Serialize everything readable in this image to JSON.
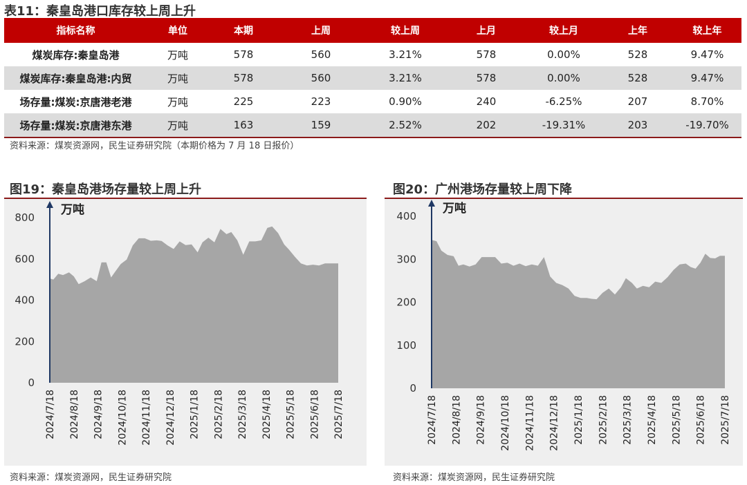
{
  "table": {
    "title": "表11：秦皇岛港口库存较上周上升",
    "headers": [
      "指标名称",
      "单位",
      "本期",
      "上周",
      "较上周",
      "上月",
      "较上月",
      "上年",
      "较上年"
    ],
    "rows": [
      [
        "煤炭库存:秦皇岛港",
        "万吨",
        "578",
        "560",
        "3.21%",
        "578",
        "0.00%",
        "528",
        "9.47%"
      ],
      [
        "煤炭库存:秦皇岛港:内贸",
        "万吨",
        "578",
        "560",
        "3.21%",
        "578",
        "0.00%",
        "528",
        "9.47%"
      ],
      [
        "场存量:煤炭:京唐港老港",
        "万吨",
        "225",
        "223",
        "0.90%",
        "240",
        "-6.25%",
        "207",
        "8.70%"
      ],
      [
        "场存量:煤炭:京唐港东港",
        "万吨",
        "163",
        "159",
        "2.52%",
        "202",
        "-19.31%",
        "203",
        "-19.70%"
      ]
    ],
    "source": "资料来源：煤炭资源网，民生证券研究院（本期价格为 7 月 18 日报价）"
  },
  "chart_data": [
    {
      "type": "area",
      "title": "图19：秦皇岛港场存量较上周上升",
      "unit_label": "万吨",
      "ylim": [
        0,
        800
      ],
      "yticks": [
        0,
        200,
        400,
        600,
        800
      ],
      "x_ticks": [
        "2024/7/18",
        "2024/8/18",
        "2024/9/18",
        "2024/10/18",
        "2024/11/18",
        "2024/12/18",
        "2025/1/18",
        "2025/2/18",
        "2025/3/18",
        "2025/4/18",
        "2025/5/18",
        "2025/6/18",
        "2025/7/18"
      ],
      "x_range": [
        0,
        12
      ],
      "x": [
        0,
        0.15,
        0.35,
        0.55,
        0.8,
        1.0,
        1.2,
        1.45,
        1.7,
        1.95,
        2.15,
        2.35,
        2.55,
        2.7,
        2.95,
        3.2,
        3.45,
        3.7,
        3.95,
        4.2,
        4.45,
        4.65,
        4.9,
        5.15,
        5.4,
        5.65,
        5.9,
        6.15,
        6.35,
        6.6,
        6.85,
        7.1,
        7.35,
        7.55,
        7.8,
        8.05,
        8.3,
        8.55,
        8.8,
        9.05,
        9.25,
        9.5,
        9.75,
        9.95,
        10.2,
        10.45,
        10.7,
        10.95,
        11.2,
        11.45,
        11.7,
        11.95,
        12
      ],
      "values": [
        505,
        500,
        528,
        522,
        535,
        515,
        478,
        492,
        510,
        492,
        583,
        583,
        510,
        535,
        575,
        597,
        665,
        700,
        700,
        688,
        690,
        687,
        665,
        648,
        685,
        667,
        670,
        632,
        680,
        703,
        680,
        745,
        720,
        730,
        690,
        620,
        685,
        685,
        690,
        750,
        757,
        725,
        670,
        645,
        610,
        578,
        568,
        572,
        568,
        578,
        578,
        578,
        578
      ]
    },
    {
      "type": "area",
      "title": "图20：广州港场存量较上周下降",
      "unit_label": "万吨",
      "ylim": [
        0,
        400
      ],
      "yticks": [
        0,
        100,
        200,
        300,
        400
      ],
      "x_ticks": [
        "2024/7/18",
        "2024/8/18",
        "2024/9/18",
        "2024/10/18",
        "2024/11/18",
        "2024/12/18",
        "2025/1/18",
        "2025/2/18",
        "2025/3/18",
        "2025/4/18",
        "2025/5/18",
        "2025/6/18",
        "2025/7/18"
      ],
      "x_range": [
        0,
        12
      ],
      "x": [
        0,
        0.2,
        0.4,
        0.65,
        0.9,
        1.1,
        1.3,
        1.55,
        1.8,
        2.05,
        2.3,
        2.6,
        2.85,
        3.1,
        3.35,
        3.6,
        3.85,
        4.1,
        4.35,
        4.6,
        4.85,
        5.1,
        5.35,
        5.6,
        5.85,
        6.1,
        6.35,
        6.55,
        6.75,
        7.0,
        7.25,
        7.5,
        7.75,
        7.95,
        8.2,
        8.4,
        8.65,
        8.9,
        9.15,
        9.4,
        9.65,
        9.9,
        10.15,
        10.4,
        10.6,
        10.8,
        11.0,
        11.2,
        11.4,
        11.6,
        11.8,
        12
      ],
      "values": [
        345,
        342,
        320,
        310,
        307,
        285,
        288,
        283,
        288,
        305,
        305,
        305,
        290,
        292,
        285,
        290,
        284,
        288,
        285,
        305,
        260,
        245,
        240,
        232,
        215,
        210,
        210,
        208,
        207,
        222,
        232,
        218,
        235,
        256,
        245,
        232,
        238,
        235,
        248,
        245,
        258,
        275,
        288,
        290,
        282,
        278,
        292,
        313,
        303,
        302,
        308,
        308
      ]
    }
  ],
  "footer": {
    "left_source": "资料来源：煤炭资源网，民生证券研究院",
    "right_source": "资料来源：煤炭资源网，民生证券研究院"
  },
  "colors": {
    "header_bg": "#c00000",
    "area_fill": "#a6a6a6",
    "axis_arrow": "#1f3864",
    "chart_bg": "#efefef"
  }
}
